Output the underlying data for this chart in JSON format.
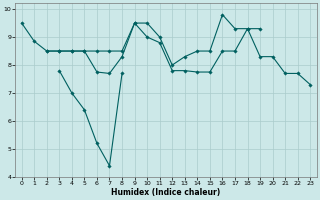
{
  "xlabel": "Humidex (Indice chaleur)",
  "bg_color": "#cce8e8",
  "grid_color": "#aacccc",
  "line_color": "#006060",
  "xlim": [
    -0.5,
    23.5
  ],
  "ylim": [
    4,
    10.2
  ],
  "xticks": [
    0,
    1,
    2,
    3,
    4,
    5,
    6,
    7,
    8,
    9,
    10,
    11,
    12,
    13,
    14,
    15,
    16,
    17,
    18,
    19,
    20,
    21,
    22,
    23
  ],
  "yticks": [
    4,
    5,
    6,
    7,
    8,
    9,
    10
  ],
  "series": [
    [
      9.5,
      8.85,
      8.5,
      8.5,
      8.5,
      8.5,
      8.5,
      8.5,
      8.5,
      9.5,
      9.5,
      9.0,
      8.0,
      8.3,
      8.5,
      8.5,
      9.8,
      9.3,
      9.3,
      8.3,
      8.3,
      7.7,
      7.7,
      7.3
    ],
    [
      null,
      null,
      8.5,
      8.5,
      8.5,
      8.5,
      7.75,
      7.7,
      8.3,
      9.5,
      9.0,
      8.8,
      7.8,
      7.8,
      7.75,
      7.75,
      8.5,
      8.5,
      9.3,
      9.3,
      null,
      null,
      null,
      null
    ],
    [
      null,
      null,
      null,
      7.8,
      7.0,
      6.4,
      5.2,
      4.4,
      7.7,
      null,
      null,
      null,
      null,
      null,
      null,
      null,
      null,
      null,
      null,
      null,
      null,
      null,
      null,
      null
    ]
  ]
}
